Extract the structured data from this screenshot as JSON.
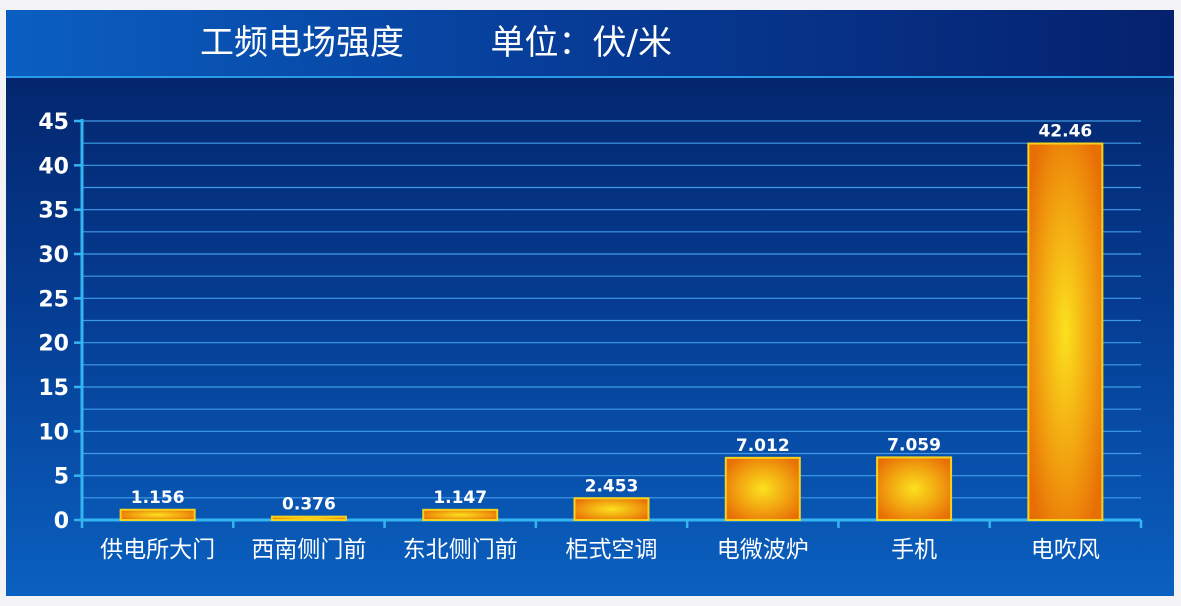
{
  "title": "工频电场强度        单位：伏/米",
  "chart_data": {
    "type": "bar",
    "categories": [
      "供电所大门",
      "西南侧门前",
      "东北侧门前",
      "柜式空调",
      "电微波炉",
      "手机",
      "电吹风"
    ],
    "values": [
      1.156,
      0.376,
      1.147,
      2.453,
      7.012,
      7.059,
      42.46
    ],
    "value_labels": [
      "1.156",
      "0.376",
      "1.147",
      "2.453",
      "7.012",
      "7.059",
      "42.46"
    ],
    "ylim": [
      0,
      45
    ],
    "yticks": [
      0,
      5,
      10,
      15,
      20,
      25,
      30,
      35,
      40,
      45
    ],
    "ytick_labels": [
      "0",
      "5",
      "10",
      "15",
      "20",
      "25",
      "30",
      "35",
      "40",
      "45"
    ],
    "minor_grid_step": 2.5,
    "grid": true,
    "legend": "none",
    "colors": {
      "bar_center": "#fbe11e",
      "bar_edge": "#e86e06",
      "bar_border": "#f7d21a",
      "axis": "#35b4f2",
      "grid": "#3f9be8",
      "text": "#ffffff"
    }
  }
}
